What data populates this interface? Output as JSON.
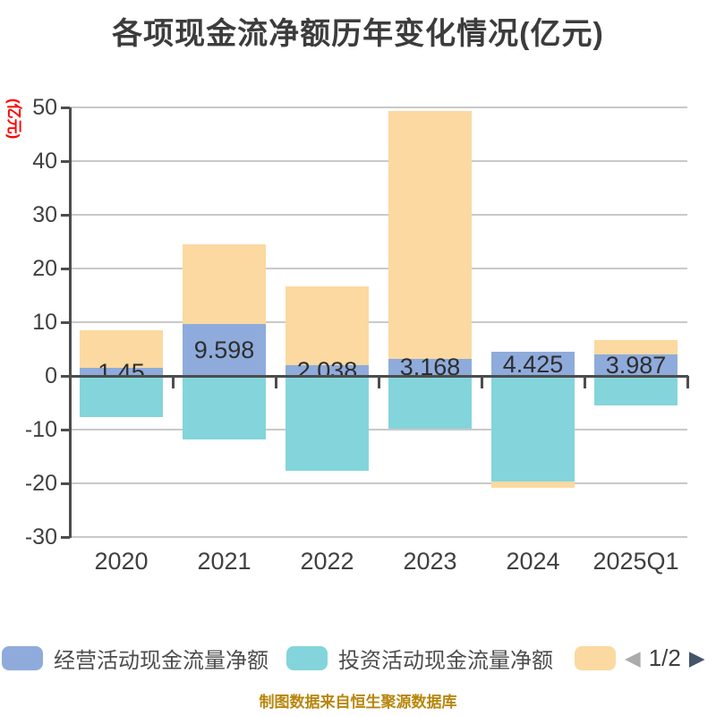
{
  "title": "各项现金流净额历年变化情况(亿元)",
  "y_axis_name": "(亿元)",
  "footer": "制图数据来自恒生聚源数据库",
  "legend": {
    "items": [
      {
        "label": "经营活动现金流量净额",
        "color": "#8eabdc"
      },
      {
        "label": "投资活动现金流量净额",
        "color": "#83d5db"
      },
      {
        "label": "",
        "color": "#fbd9a0"
      }
    ],
    "pager": {
      "prev_icon": "◀",
      "current": "1/2",
      "next_icon": "▶"
    }
  },
  "chart_data": {
    "type": "bar",
    "stacked": true,
    "categories": [
      "2020",
      "2021",
      "2022",
      "2023",
      "2024",
      "2025Q1"
    ],
    "series": [
      {
        "name": "经营活动现金流量净额",
        "color": "#8eabdc",
        "values": [
          1.45,
          9.598,
          2.038,
          3.168,
          4.425,
          3.987
        ],
        "labels": [
          "1.45",
          "9.598",
          "2.038",
          "3.168",
          "4.425",
          "3.987"
        ]
      },
      {
        "name": "投资活动现金流量净额",
        "color": "#83d5db",
        "values": [
          -7.6,
          -11.8,
          -17.7,
          -9.8,
          -19.6,
          -5.5
        ]
      },
      {
        "name": "",
        "color": "#fbd9a0",
        "values": [
          7.0,
          14.9,
          14.6,
          46.2,
          -1.3,
          2.7
        ]
      }
    ],
    "ylim": [
      -30,
      50
    ],
    "yticks": [
      50,
      40,
      30,
      20,
      10,
      0,
      -10,
      -20,
      -30
    ],
    "ylabel": "(亿元)",
    "grid": true,
    "legend_position": "bottom"
  }
}
